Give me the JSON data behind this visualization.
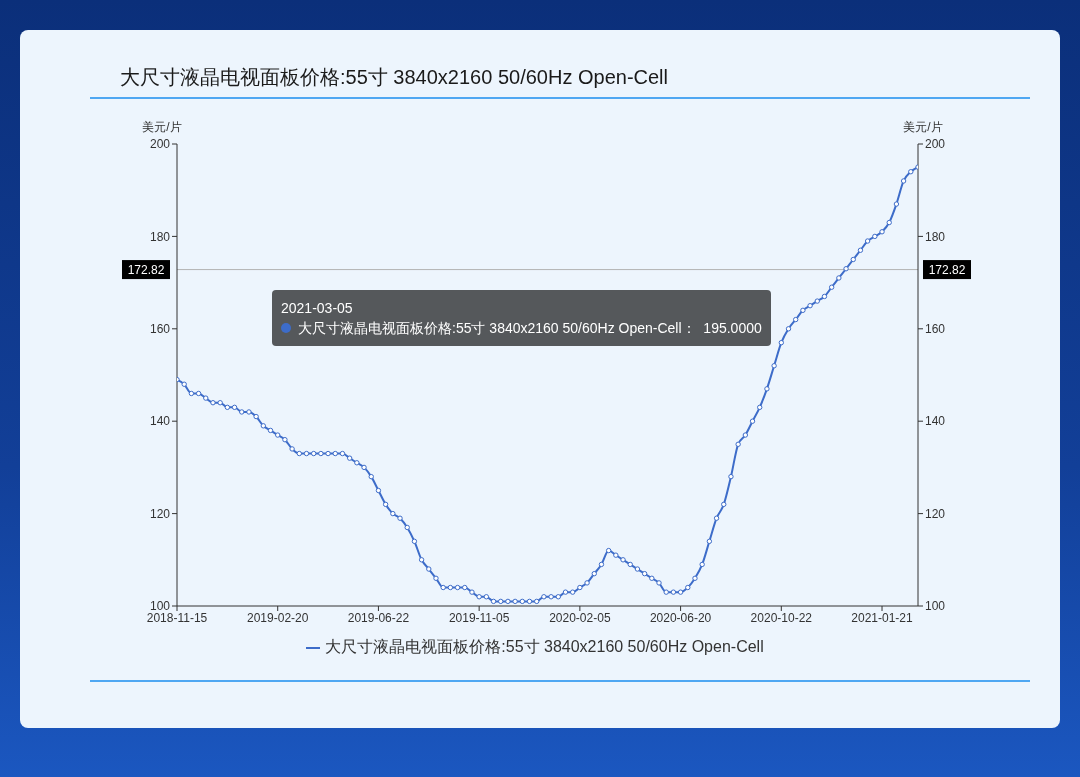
{
  "chart_data": {
    "type": "line",
    "title": "大尺寸液晶电视面板价格:55寸 3840x2160 50/60Hz Open-Cell",
    "ylabel": "美元/片",
    "y2label": "美元/片",
    "categories": [
      "2018-11-15",
      null,
      null,
      null,
      null,
      null,
      null,
      null,
      null,
      null,
      null,
      null,
      null,
      null,
      "2019-02-20",
      null,
      null,
      null,
      null,
      null,
      null,
      null,
      null,
      null,
      null,
      null,
      null,
      null,
      "2019-06-22",
      null,
      null,
      null,
      null,
      null,
      null,
      null,
      null,
      null,
      null,
      null,
      null,
      null,
      "2019-11-05",
      null,
      null,
      null,
      null,
      null,
      null,
      null,
      null,
      null,
      null,
      null,
      null,
      null,
      "2020-02-05",
      null,
      null,
      null,
      null,
      null,
      null,
      null,
      null,
      null,
      null,
      null,
      null,
      null,
      "2020-06-20",
      null,
      null,
      null,
      null,
      null,
      null,
      null,
      null,
      null,
      null,
      null,
      null,
      null,
      "2020-10-22",
      null,
      null,
      null,
      null,
      null,
      null,
      null,
      null,
      null,
      null,
      null,
      null,
      null,
      "2021-01-21",
      null,
      null,
      null,
      null,
      null
    ],
    "series": [
      {
        "name": "大尺寸液晶电视面板价格:55寸 3840x2160 50/60Hz Open-Cell",
        "color": "#3d6cc9",
        "values": [
          149,
          148,
          146,
          146,
          145,
          144,
          144,
          143,
          143,
          142,
          142,
          141,
          139,
          138,
          137,
          136,
          134,
          133,
          133,
          133,
          133,
          133,
          133,
          133,
          132,
          131,
          130,
          128,
          125,
          122,
          120,
          119,
          117,
          114,
          110,
          108,
          106,
          104,
          104,
          104,
          104,
          103,
          102,
          102,
          101,
          101,
          101,
          101,
          101,
          101,
          101,
          102,
          102,
          102,
          103,
          103,
          104,
          105,
          107,
          109,
          112,
          111,
          110,
          109,
          108,
          107,
          106,
          105,
          103,
          103,
          103,
          104,
          106,
          109,
          114,
          119,
          122,
          128,
          135,
          137,
          140,
          143,
          147,
          152,
          157,
          160,
          162,
          164,
          165,
          166,
          167,
          169,
          171,
          173,
          175,
          177,
          179,
          180,
          181,
          183,
          187,
          192,
          194,
          195
        ]
      }
    ],
    "ylim": [
      100,
      200
    ],
    "yticks": [
      100,
      120,
      140,
      160,
      180,
      200
    ],
    "y2lim": [
      100,
      200
    ],
    "y2ticks": [
      100,
      120,
      140,
      160,
      180,
      200
    ],
    "ref_lines": [
      {
        "axis": "y",
        "value": 172.82,
        "label": "172.82",
        "color": "#b4b4b4"
      }
    ],
    "annotations": [
      "2021-03-05",
      "大尺寸液晶电视面板价格:55寸 3840x2160 50/60Hz Open-Cell：  195.0000"
    ],
    "legend": "bottom",
    "marker": "circle"
  }
}
